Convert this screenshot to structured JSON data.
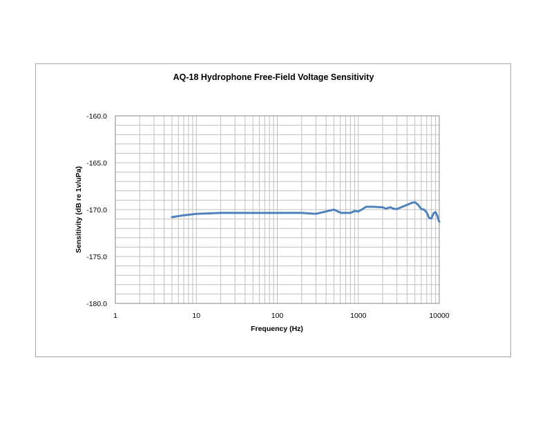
{
  "chart_data": {
    "type": "line",
    "title": "AQ-18 Hydrophone Free-Field Voltage Sensitivity",
    "xlabel": "Frequency (Hz)",
    "ylabel": "Sensitivity (dB re 1v/uPa)",
    "x_scale": "log",
    "xlim": [
      1,
      10000
    ],
    "ylim": [
      -180,
      -160
    ],
    "x_ticks": [
      "1",
      "10",
      "100",
      "1000",
      "10000"
    ],
    "y_ticks": [
      "-160.0",
      "-165.0",
      "-170.0",
      "-175.0",
      "-180.0"
    ],
    "grid": true,
    "legend": "none",
    "line_color": "#4f81bd",
    "series": [
      {
        "x": [
          5,
          7,
          10,
          15,
          20,
          30,
          50,
          100,
          200,
          300,
          400,
          500,
          560,
          620,
          700,
          800,
          900,
          1000,
          1100,
          1250,
          1500,
          2000,
          2200,
          2500,
          2700,
          3000,
          3500,
          4000,
          4500,
          5000,
          5500,
          6000,
          6500,
          7000,
          7500,
          8000,
          8500,
          9000,
          9500,
          10000
        ],
        "y": [
          -170.8,
          -170.6,
          -170.45,
          -170.4,
          -170.35,
          -170.35,
          -170.35,
          -170.35,
          -170.35,
          -170.45,
          -170.2,
          -170.0,
          -170.2,
          -170.35,
          -170.35,
          -170.35,
          -170.15,
          -170.2,
          -170.0,
          -169.7,
          -169.7,
          -169.75,
          -169.9,
          -169.75,
          -169.9,
          -169.95,
          -169.7,
          -169.5,
          -169.3,
          -169.2,
          -169.5,
          -169.95,
          -170.0,
          -170.3,
          -170.9,
          -170.95,
          -170.4,
          -170.25,
          -170.7,
          -171.3
        ]
      }
    ]
  }
}
